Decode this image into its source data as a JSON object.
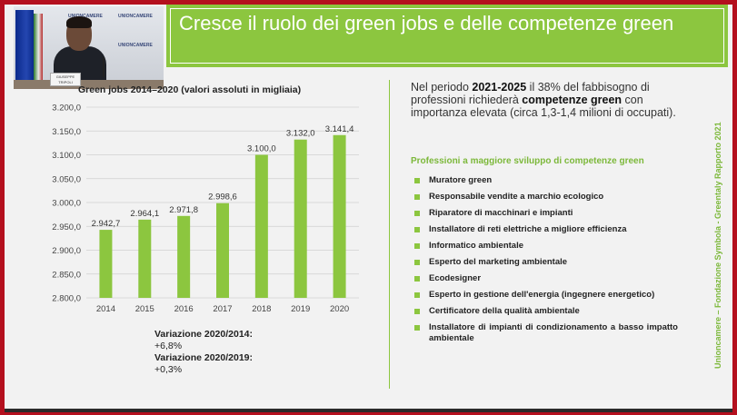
{
  "slide": {
    "title": "Cresce il ruolo dei green jobs e delle competenze green",
    "intro_pre": "Nel periodo ",
    "intro_period": "2021-2025",
    "intro_mid": " il 38% del fabbisogno di professioni richiederà ",
    "intro_highlight": "competenze green",
    "intro_post": " con importanza elevata (circa 1,3-1,4 milioni di occupati).",
    "professions_heading": "Professioni a maggiore sviluppo di competenze green",
    "professions": [
      "Muratore green",
      "Responsabile vendite a marchio ecologico",
      "Riparatore di macchinari e impianti",
      "Installatore di reti elettriche a migliore efficienza",
      "Informatico ambientale",
      "Esperto del marketing ambientale",
      "Ecodesigner",
      "Esperto in gestione dell'energia (ingegnere energetico)",
      "Certificatore della qualità ambientale",
      "Installatore di impianti di condizionamento a basso impatto ambientale"
    ],
    "source": "Unioncamere – Fondazione Symbola - Greentaly Rapporto 2021",
    "variation_1_label": "Variazione 2020/2014:",
    "variation_1_value": "+6,8%",
    "variation_2_label": "Variazione 2020/2019:",
    "variation_2_value": "+0,3%"
  },
  "webcam": {
    "wall_logo": "UNIONCAMERE",
    "nameplate": "GIUSEPPE TRIPOLI"
  },
  "colors": {
    "accent_green": "#8cc63f",
    "frame_red": "#b4101e",
    "bar_green": "#8cc63f"
  },
  "chart_data": {
    "type": "bar",
    "title": "Green jobs 2014–2020 (valori assoluti in migliaia)",
    "categories": [
      "2014",
      "2015",
      "2016",
      "2017",
      "2018",
      "2019",
      "2020"
    ],
    "values": [
      2942.7,
      2964.1,
      2971.8,
      2998.6,
      3100.0,
      3132.0,
      3141.4
    ],
    "value_labels": [
      "2.942,7",
      "2.964,1",
      "2.971,8",
      "2.998,6",
      "3.100,0",
      "3.132,0",
      "3.141,4"
    ],
    "y_ticks": [
      2800,
      2850,
      2900,
      2950,
      3000,
      3050,
      3100,
      3150,
      3200
    ],
    "y_tick_labels": [
      "2.800,0",
      "2.850,0",
      "2.900,0",
      "2.950,0",
      "3.000,0",
      "3.050,0",
      "3.100,0",
      "3.150,0",
      "3.200,0"
    ],
    "ylim": [
      2800,
      3200
    ],
    "grid": true,
    "xlabel": "",
    "ylabel": ""
  }
}
